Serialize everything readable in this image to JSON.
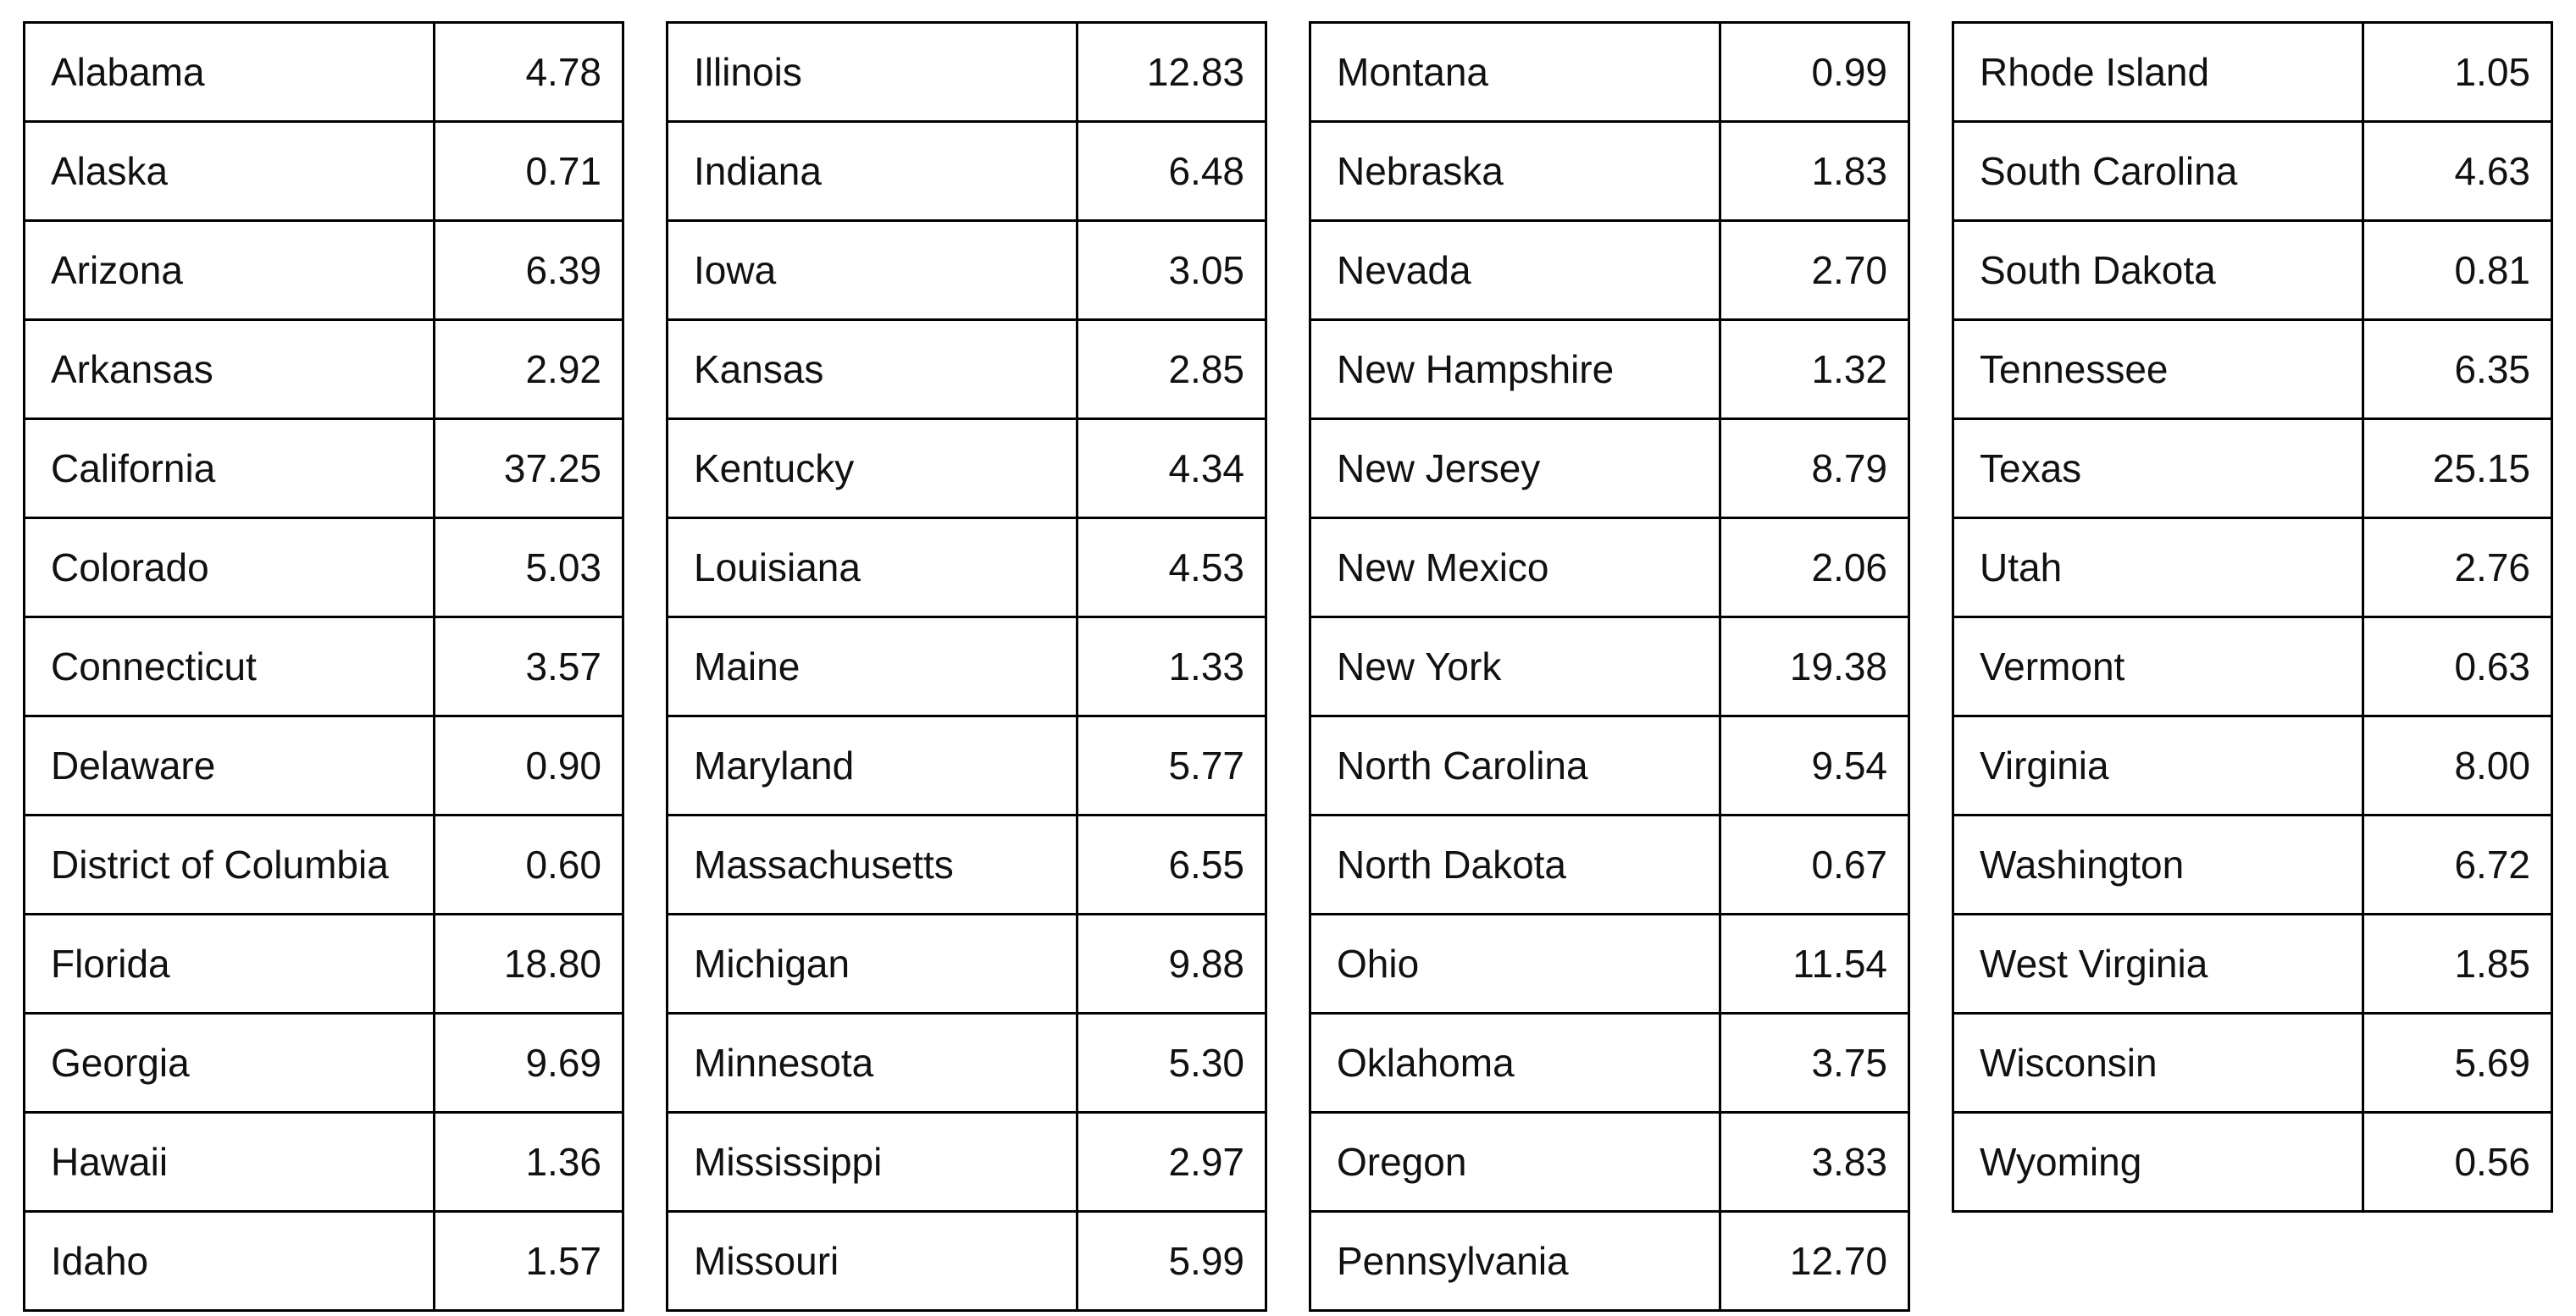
{
  "page": {
    "background_color": "#ffffff",
    "border_color": "#000000",
    "text_color": "#111111"
  },
  "chart_data": {
    "type": "table",
    "title": "",
    "columns_visible_headers": [],
    "description_of_columns": [
      "state name",
      "numeric value"
    ],
    "tables": [
      {
        "name": "state-table-1",
        "rows": [
          {
            "label": "Alabama",
            "value": "4.78"
          },
          {
            "label": "Alaska",
            "value": "0.71"
          },
          {
            "label": "Arizona",
            "value": "6.39"
          },
          {
            "label": "Arkansas",
            "value": "2.92"
          },
          {
            "label": "California",
            "value": "37.25"
          },
          {
            "label": "Colorado",
            "value": "5.03"
          },
          {
            "label": "Connecticut",
            "value": "3.57"
          },
          {
            "label": "Delaware",
            "value": "0.90"
          },
          {
            "label": "District of Columbia",
            "value": "0.60"
          },
          {
            "label": "Florida",
            "value": "18.80"
          },
          {
            "label": "Georgia",
            "value": "9.69"
          },
          {
            "label": "Hawaii",
            "value": "1.36"
          },
          {
            "label": "Idaho",
            "value": "1.57"
          }
        ]
      },
      {
        "name": "state-table-2",
        "rows": [
          {
            "label": "Illinois",
            "value": "12.83"
          },
          {
            "label": "Indiana",
            "value": "6.48"
          },
          {
            "label": "Iowa",
            "value": "3.05"
          },
          {
            "label": "Kansas",
            "value": "2.85"
          },
          {
            "label": "Kentucky",
            "value": "4.34"
          },
          {
            "label": "Louisiana",
            "value": "4.53"
          },
          {
            "label": "Maine",
            "value": "1.33"
          },
          {
            "label": "Maryland",
            "value": "5.77"
          },
          {
            "label": "Massachusetts",
            "value": "6.55"
          },
          {
            "label": "Michigan",
            "value": "9.88"
          },
          {
            "label": "Minnesota",
            "value": "5.30"
          },
          {
            "label": "Mississippi",
            "value": "2.97"
          },
          {
            "label": "Missouri",
            "value": "5.99"
          }
        ]
      },
      {
        "name": "state-table-3",
        "rows": [
          {
            "label": "Montana",
            "value": "0.99"
          },
          {
            "label": "Nebraska",
            "value": "1.83"
          },
          {
            "label": "Nevada",
            "value": "2.70"
          },
          {
            "label": "New Hampshire",
            "value": "1.32"
          },
          {
            "label": "New Jersey",
            "value": "8.79"
          },
          {
            "label": "New Mexico",
            "value": "2.06"
          },
          {
            "label": "New York",
            "value": "19.38"
          },
          {
            "label": "North Carolina",
            "value": "9.54"
          },
          {
            "label": "North Dakota",
            "value": "0.67"
          },
          {
            "label": "Ohio",
            "value": "11.54"
          },
          {
            "label": "Oklahoma",
            "value": "3.75"
          },
          {
            "label": "Oregon",
            "value": "3.83"
          },
          {
            "label": "Pennsylvania",
            "value": "12.70"
          }
        ]
      },
      {
        "name": "state-table-4",
        "rows": [
          {
            "label": "Rhode Island",
            "value": "1.05"
          },
          {
            "label": "South Carolina",
            "value": "4.63"
          },
          {
            "label": "South Dakota",
            "value": "0.81"
          },
          {
            "label": "Tennessee",
            "value": "6.35"
          },
          {
            "label": "Texas",
            "value": "25.15"
          },
          {
            "label": "Utah",
            "value": "2.76"
          },
          {
            "label": "Vermont",
            "value": "0.63"
          },
          {
            "label": "Virginia",
            "value": "8.00"
          },
          {
            "label": "Washington",
            "value": "6.72"
          },
          {
            "label": "West Virginia",
            "value": "1.85"
          },
          {
            "label": "Wisconsin",
            "value": "5.69"
          },
          {
            "label": "Wyoming",
            "value": "0.56"
          }
        ]
      }
    ]
  }
}
